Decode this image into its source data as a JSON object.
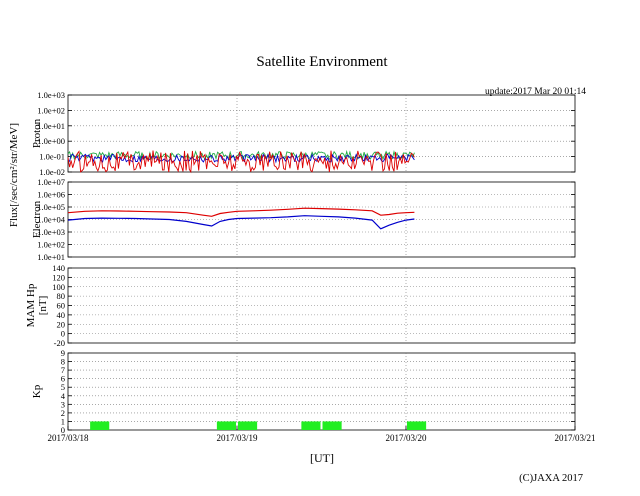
{
  "title": "Satellite Environment",
  "update": "update:2017 Mar 20 01:14",
  "copyright": "(C)JAXA 2017",
  "chart_data": {
    "type": "line",
    "title": "Satellite Environment",
    "xlabel": "[UT]",
    "x_ticks": [
      "2017/03/18",
      "2017/03/19",
      "2017/03/20",
      "2017/03/21"
    ],
    "x_range_days": [
      0,
      3
    ],
    "panels": [
      {
        "name": "proton",
        "ylabel": "Proton",
        "scale": "log",
        "ylim": [
          0.01,
          1000
        ],
        "yticks": [
          "1.0e+03",
          "1.0e+02",
          "1.0e+01",
          "1.0e+00",
          "1.0e-01",
          "1.0e-02"
        ],
        "series": [
          {
            "name": "proton-green",
            "color": "#22aa44",
            "x": [
              0.0,
              0.3,
              0.6,
              0.9,
              1.2,
              1.5,
              1.8,
              2.05
            ],
            "y": [
              0.12,
              0.12,
              0.11,
              0.12,
              0.12,
              0.11,
              0.12,
              0.12
            ]
          },
          {
            "name": "proton-blue",
            "color": "#0000cc",
            "x": [
              0.0,
              0.3,
              0.6,
              0.9,
              1.2,
              1.5,
              1.8,
              2.05
            ],
            "y": [
              0.08,
              0.08,
              0.07,
              0.08,
              0.08,
              0.07,
              0.08,
              0.08
            ]
          },
          {
            "name": "proton-red",
            "color": "#dd0000",
            "x": [
              0.0,
              0.3,
              0.6,
              0.9,
              1.2,
              1.5,
              1.8,
              2.05
            ],
            "y": [
              0.05,
              0.05,
              0.05,
              0.05,
              0.05,
              0.05,
              0.05,
              0.05
            ]
          }
        ]
      },
      {
        "name": "electron",
        "ylabel": "Electron",
        "scale": "log",
        "ylim": [
          10,
          10000000
        ],
        "yticks": [
          "1.0e+07",
          "1.0e+06",
          "1.0e+05",
          "1.0e+04",
          "1.0e+03",
          "1.0e+02",
          "1.0e+01"
        ],
        "series": [
          {
            "name": "electron-red",
            "color": "#dd0000",
            "x": [
              0.0,
              0.1,
              0.2,
              0.3,
              0.4,
              0.5,
              0.6,
              0.7,
              0.8,
              0.85,
              0.9,
              0.95,
              1.0,
              1.1,
              1.2,
              1.3,
              1.4,
              1.5,
              1.6,
              1.7,
              1.8,
              1.85,
              1.9,
              1.95,
              2.0,
              2.05
            ],
            "y": [
              35000,
              45000,
              50000,
              48000,
              45000,
              42000,
              40000,
              35000,
              22000,
              18000,
              30000,
              38000,
              45000,
              50000,
              55000,
              65000,
              80000,
              75000,
              68000,
              60000,
              50000,
              22000,
              25000,
              32000,
              35000,
              38000
            ]
          },
          {
            "name": "electron-blue",
            "color": "#0000cc",
            "x": [
              0.0,
              0.1,
              0.2,
              0.3,
              0.4,
              0.5,
              0.6,
              0.7,
              0.8,
              0.85,
              0.9,
              0.95,
              1.0,
              1.1,
              1.2,
              1.3,
              1.4,
              1.5,
              1.6,
              1.7,
              1.8,
              1.85,
              1.9,
              1.95,
              2.0,
              2.05
            ],
            "y": [
              9000,
              12000,
              13000,
              12500,
              12000,
              11000,
              10000,
              7000,
              4000,
              3000,
              7000,
              10000,
              12000,
              13000,
              14000,
              16000,
              20000,
              18000,
              16000,
              13000,
              9000,
              1800,
              3500,
              6000,
              9000,
              11000
            ]
          }
        ]
      },
      {
        "name": "mam-hp",
        "ylabel": "MAM Hp",
        "unit": "[nT]",
        "scale": "linear",
        "ylim": [
          -20,
          140
        ],
        "yticks": [
          "140",
          "120",
          "100",
          "80",
          "60",
          "40",
          "20",
          "0",
          "-20"
        ],
        "series": []
      },
      {
        "name": "kp",
        "ylabel": "Kp",
        "scale": "linear",
        "ylim": [
          0,
          9
        ],
        "yticks": [
          "9",
          "8",
          "7",
          "6",
          "5",
          "4",
          "3",
          "2",
          "1",
          "0"
        ],
        "bar_color": "#22ee22",
        "bars": [
          {
            "start": 0.125,
            "end": 0.25,
            "value": 1
          },
          {
            "start": 0.875,
            "end": 1.0,
            "value": 1
          },
          {
            "start": 1.0,
            "end": 1.125,
            "value": 1
          },
          {
            "start": 1.375,
            "end": 1.5,
            "value": 1
          },
          {
            "start": 1.5,
            "end": 1.625,
            "value": 1
          },
          {
            "start": 2.0,
            "end": 2.125,
            "value": 1
          }
        ]
      }
    ],
    "shared_ylabel": "Flux[/sec/cm²/str/MeV]"
  }
}
